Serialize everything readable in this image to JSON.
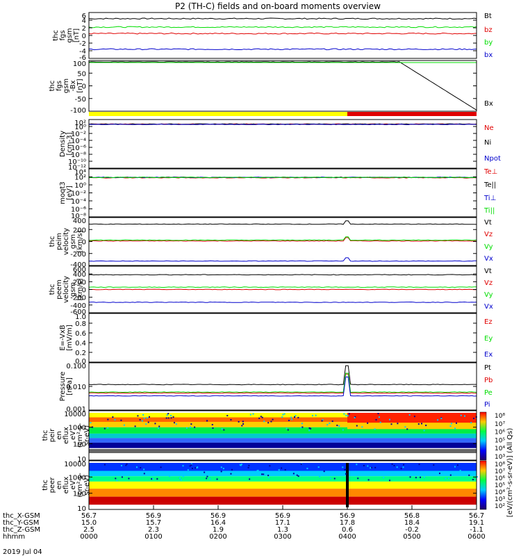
{
  "title": "P2 (TH-C) fields and on-board moments overview",
  "date_label": "2019 Jul 04",
  "colors": {
    "black": "#000000",
    "red": "#e00000",
    "green": "#00dd00",
    "blue": "#0000cc",
    "yellow": "#ffff00"
  },
  "chart_data": [
    {
      "id": "fgs",
      "type": "line",
      "ylabel": [
        "thc",
        "fgs",
        "gsm",
        "[nT]"
      ],
      "yticks": [
        "6",
        "4",
        "2",
        "0",
        "-2",
        "-4",
        "-6"
      ],
      "ylim": [
        -6,
        6
      ],
      "series": [
        {
          "name": "Bt",
          "color": "#000000",
          "level": 4.4
        },
        {
          "name": "bz",
          "color": "#e00000",
          "level": 0.5
        },
        {
          "name": "by",
          "color": "#00dd00",
          "level": 2.2
        },
        {
          "name": "bx",
          "color": "#0000cc",
          "level": -3.6
        }
      ]
    },
    {
      "id": "fgs_bx",
      "type": "line",
      "ylabel": [
        "thc",
        "fgs",
        "gsm",
        "-Bx",
        "[nT]"
      ],
      "yticks": [
        "100",
        "50",
        "0",
        "-50",
        "-100"
      ],
      "ylim": [
        -125,
        100
      ],
      "series": [
        {
          "name": "Bx",
          "color": "#000000",
          "level": -120
        }
      ]
    },
    {
      "id": "density",
      "type": "line",
      "ylabel": [
        "Density",
        "[cm-3]"
      ],
      "yticks": [
        "10²",
        "10⁰",
        "10⁻²",
        "10⁻⁴",
        "10⁻⁶",
        "10⁻⁸",
        "10⁻¹⁰",
        "10⁻¹²"
      ],
      "ylim": [
        -13,
        2
      ],
      "series": [
        {
          "name": "Ne",
          "color": "#e00000"
        },
        {
          "name": "Ni",
          "color": "#000000"
        },
        {
          "name": "Npot",
          "color": "#0000cc"
        }
      ]
    },
    {
      "id": "temp",
      "type": "line",
      "ylabel": [
        "moqt3",
        "[eV]"
      ],
      "yticks": [
        "10⁴",
        "10²",
        "10⁰",
        "10⁻²",
        "10⁻⁴",
        "10⁻⁶",
        "10⁻⁸"
      ],
      "ylim": [
        -9,
        4
      ],
      "series": [
        {
          "name": "Te⊥",
          "color": "#e00000"
        },
        {
          "name": "Te||",
          "color": "#000000"
        },
        {
          "name": "Ti⊥",
          "color": "#0000cc"
        },
        {
          "name": "Ti||",
          "color": "#00dd00"
        }
      ]
    },
    {
      "id": "peim",
      "type": "line",
      "ylabel": [
        "thc",
        "peim",
        "velocity",
        "gsm",
        "[km/s]"
      ],
      "yticks": [
        "400",
        "200",
        "0",
        "-200",
        "-400"
      ],
      "ylim": [
        -450,
        420
      ],
      "series": [
        {
          "name": "Vt",
          "color": "#000000"
        },
        {
          "name": "Vz",
          "color": "#e00000"
        },
        {
          "name": "Vy",
          "color": "#00dd00"
        },
        {
          "name": "Vx",
          "color": "#0000cc"
        }
      ]
    },
    {
      "id": "peem",
      "type": "line",
      "ylabel": [
        "thc",
        "peem",
        "velocity",
        "gsm",
        "[km/s]"
      ],
      "yticks": [
        "600",
        "400",
        "200",
        "0",
        "-200",
        "-400",
        "-600"
      ],
      "ylim": [
        -600,
        600
      ],
      "series": [
        {
          "name": "Vt",
          "color": "#000000",
          "level": 380
        },
        {
          "name": "Vz",
          "color": "#e00000",
          "level": 0
        },
        {
          "name": "Vy",
          "color": "#00dd00",
          "level": 60
        },
        {
          "name": "Vx",
          "color": "#0000cc",
          "level": -330
        }
      ]
    },
    {
      "id": "efield",
      "type": "line",
      "ylabel": [
        "E=-VxB",
        "[mV/m]"
      ],
      "yticks": [
        "1.0",
        "0.8",
        "0.6",
        "0.4",
        "0.2",
        "0.0"
      ],
      "ylim": [
        0,
        1
      ],
      "series": [
        {
          "name": "Ez",
          "color": "#e00000"
        },
        {
          "name": "Ey",
          "color": "#00dd00"
        },
        {
          "name": "Ex",
          "color": "#0000cc"
        }
      ]
    },
    {
      "id": "pressure",
      "type": "line",
      "ylabel": [
        "Pressure",
        "[nPa]"
      ],
      "yticks": [
        "0.100",
        "0.010",
        "0.001"
      ],
      "ylim": [
        -3,
        -0.5
      ],
      "series": [
        {
          "name": "Pt",
          "color": "#000000"
        },
        {
          "name": "Pb",
          "color": "#e00000"
        },
        {
          "name": "Pe",
          "color": "#00dd00"
        },
        {
          "name": "Pi",
          "color": "#0000cc"
        }
      ]
    },
    {
      "id": "peir",
      "type": "heatmap",
      "ylabel": [
        "thc",
        "peir",
        "en",
        "eflux",
        "eV",
        "(cm²-s-",
        "sr-eV)"
      ],
      "yticks": [
        "10000",
        "1000",
        "100",
        "10"
      ]
    },
    {
      "id": "peer",
      "type": "heatmap",
      "ylabel": [
        "thc",
        "peer",
        "en",
        "eflux",
        "eV",
        "(cm²-s-",
        "sr-eV)"
      ],
      "yticks": [
        "10000",
        "1000",
        "100",
        "10"
      ]
    }
  ],
  "colorbar": {
    "ticks": [
      "10⁸",
      "10⁷",
      "10⁶",
      "10⁵",
      "10⁴",
      "10³"
    ],
    "label": "[eV/(cm²-s-sr-eV)] (All Qs)",
    "ticks2": [
      "10⁸",
      "10⁷",
      "10⁶",
      "10⁵",
      "10⁴",
      "10³",
      "10²"
    ]
  },
  "xaxis": {
    "rows": [
      {
        "label": "thc_X-GSM",
        "values": [
          "56.7",
          "56.9",
          "56.9",
          "56.9",
          "56.9",
          "56.8",
          "56.7"
        ]
      },
      {
        "label": "thc_Y-GSM",
        "values": [
          "15.0",
          "15.7",
          "16.4",
          "17.1",
          "17.8",
          "18.4",
          "19.1"
        ]
      },
      {
        "label": "thc_Z-GSM",
        "values": [
          "2.5",
          "2.3",
          "1.9",
          "1.3",
          "0.6",
          "-0.2",
          "-1.1"
        ]
      },
      {
        "label": "hhmm",
        "values": [
          "0000",
          "0100",
          "0200",
          "0300",
          "0400",
          "0500",
          "0600"
        ]
      }
    ]
  }
}
